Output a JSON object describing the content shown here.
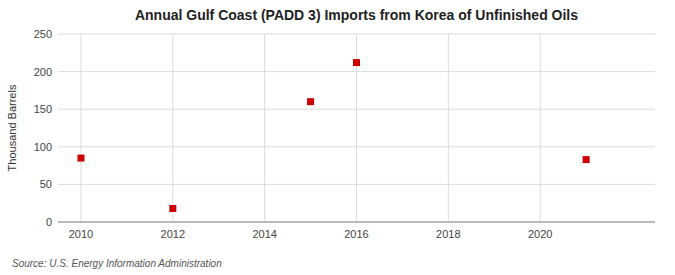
{
  "chart_data": {
    "type": "scatter",
    "title": "Annual Gulf Coast (PADD 3) Imports from Korea of Unfinished Oils",
    "y_label": "Thousand Barrels",
    "annotations": [
      "Source: U.S. Energy Information Administration"
    ],
    "x": [
      2010,
      2012,
      2015,
      2016,
      2021
    ],
    "values": [
      85,
      18,
      160,
      212,
      83
    ],
    "color": "#cc0000",
    "marker": "square",
    "xlim": [
      2009.5,
      2022.5
    ],
    "xticks": [
      2010,
      2012,
      2014,
      2016,
      2018,
      2020
    ],
    "ylim": [
      0,
      250
    ],
    "yticks": [
      0,
      50,
      100,
      150,
      200,
      250
    ],
    "grid": true
  }
}
